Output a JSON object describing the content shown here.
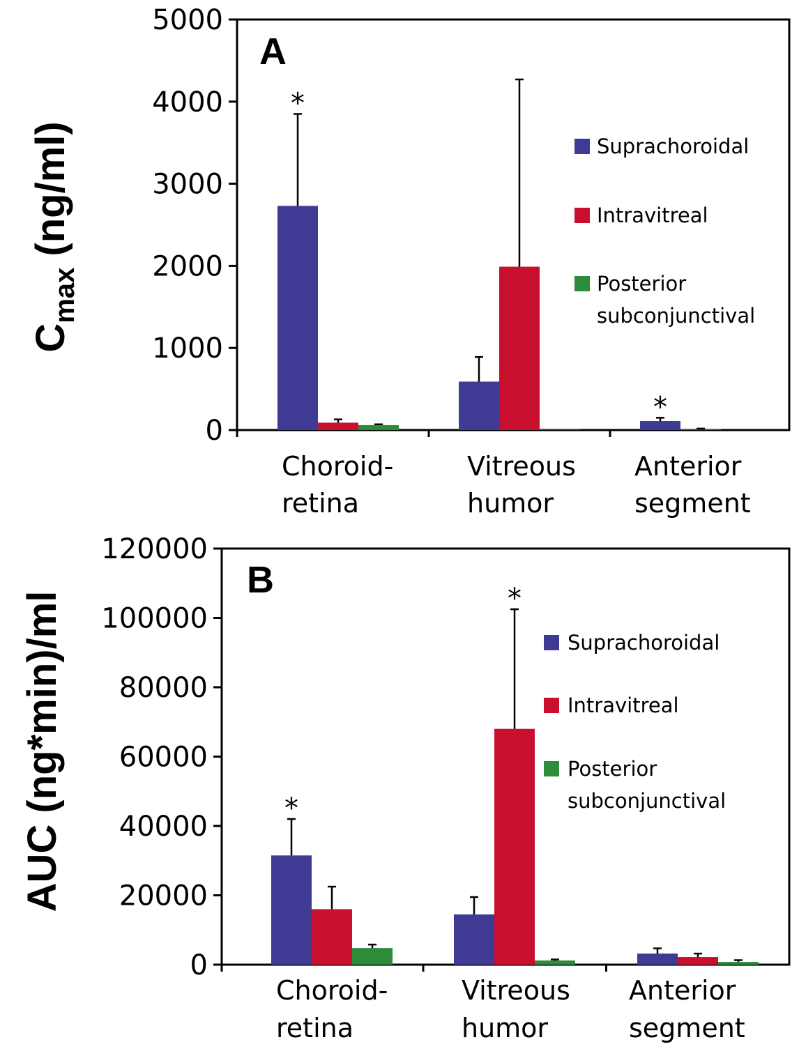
{
  "colors": {
    "Suprachoroidal": "#3f3a94",
    "Intravitreal": "#c8102e",
    "Posterior subconjunctival": "#2e8b3a",
    "axis": "#000000"
  },
  "chart_data": [
    {
      "type": "bar",
      "panel_label": "A",
      "ylabel_main": "C",
      "ylabel_sub": "max",
      "ylabel_rest": " (ng/ml)",
      "ylim": [
        0,
        5000
      ],
      "yticks": [
        "0",
        "1000",
        "2000",
        "3000",
        "4000",
        "5000"
      ],
      "categories": [
        [
          "Choroid-",
          "retina"
        ],
        [
          "Vitreous",
          "humor"
        ],
        [
          "Anterior",
          "segment"
        ]
      ],
      "series": [
        {
          "name": "Suprachoroidal",
          "values": [
            2730,
            590,
            110
          ],
          "errors": [
            1120,
            300,
            40
          ]
        },
        {
          "name": "Intravitreal",
          "values": [
            90,
            1990,
            10
          ],
          "errors": [
            40,
            2280,
            8
          ]
        },
        {
          "name": "Posterior subconjunctival",
          "values": [
            60,
            5,
            0
          ],
          "errors": [
            10,
            0,
            0
          ]
        }
      ],
      "legend": [
        [
          "Suprachoroidal"
        ],
        [
          "Intravitreal"
        ],
        [
          "Posterior",
          "subconjunctival"
        ]
      ],
      "significance": [
        {
          "category": 0,
          "series": 0,
          "label": "*"
        },
        {
          "category": 2,
          "series": 0,
          "label": "*"
        }
      ]
    },
    {
      "type": "bar",
      "panel_label": "B",
      "ylabel_main": "AUC (ng*min)/ml",
      "ylim": [
        0,
        120000
      ],
      "yticks": [
        "0",
        "20000",
        "40000",
        "60000",
        "80000",
        "100000",
        "120000"
      ],
      "categories": [
        [
          "Choroid-",
          "retina"
        ],
        [
          "Vitreous",
          "humor"
        ],
        [
          "Anterior",
          "segment"
        ]
      ],
      "series": [
        {
          "name": "Suprachoroidal",
          "values": [
            31500,
            14500,
            3200
          ],
          "errors": [
            10500,
            5000,
            1500
          ]
        },
        {
          "name": "Intravitreal",
          "values": [
            16000,
            68000,
            2200
          ],
          "errors": [
            6500,
            34500,
            1000
          ]
        },
        {
          "name": "Posterior subconjunctival",
          "values": [
            4800,
            1200,
            800
          ],
          "errors": [
            1000,
            300,
            500
          ]
        }
      ],
      "legend": [
        [
          "Suprachoroidal"
        ],
        [
          "Intravitreal"
        ],
        [
          "Posterior",
          "subconjunctival"
        ]
      ],
      "significance": [
        {
          "category": 0,
          "series": 0,
          "label": "*"
        },
        {
          "category": 1,
          "series": 1,
          "label": "*"
        }
      ]
    }
  ]
}
